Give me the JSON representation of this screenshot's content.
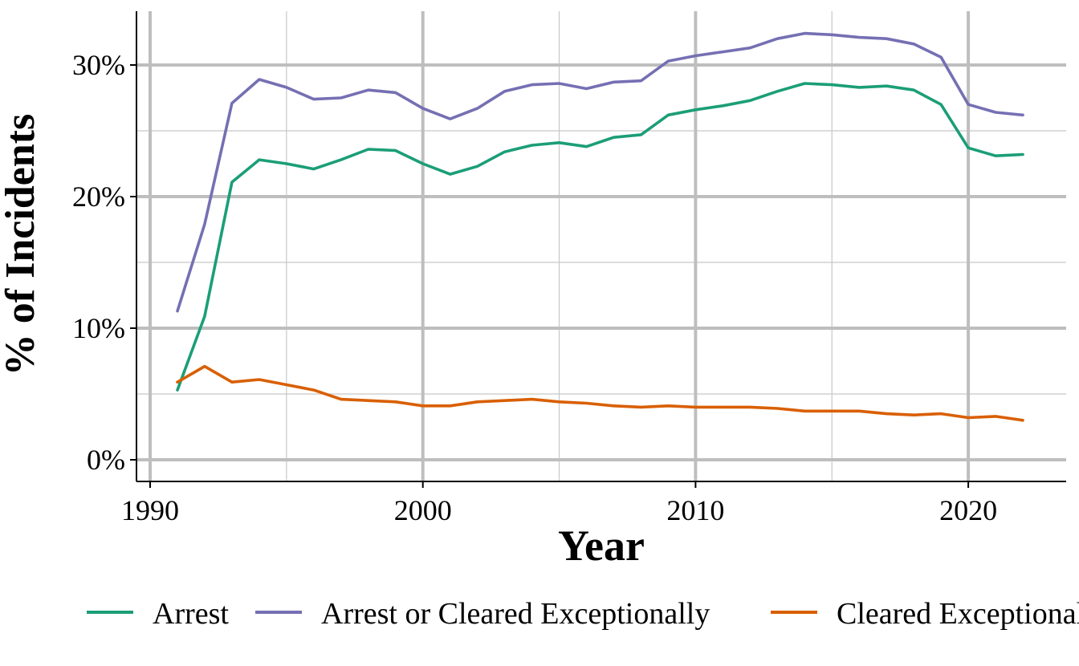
{
  "chart_data": {
    "type": "line",
    "title": "",
    "xlabel": "Year",
    "ylabel": "% of Incidents",
    "xlim": [
      1990,
      2023
    ],
    "ylim": [
      0,
      33
    ],
    "x_ticks": [
      1990,
      2000,
      2010,
      2020
    ],
    "x_tick_labels": [
      "1990",
      "2000",
      "2010",
      "2020"
    ],
    "y_ticks": [
      0,
      10,
      20,
      30
    ],
    "y_tick_labels": [
      "0%",
      "10%",
      "20%",
      "30%"
    ],
    "grid": true,
    "legend_position": "bottom",
    "x": [
      1991,
      1992,
      1993,
      1994,
      1995,
      1996,
      1997,
      1998,
      1999,
      2000,
      2001,
      2002,
      2003,
      2004,
      2005,
      2006,
      2007,
      2008,
      2009,
      2010,
      2011,
      2012,
      2013,
      2014,
      2015,
      2016,
      2017,
      2018,
      2019,
      2020,
      2021,
      2022
    ],
    "series": [
      {
        "name": "Arrest",
        "color": "#1b9e77",
        "values": [
          5.3,
          10.9,
          21.1,
          22.8,
          22.5,
          22.1,
          22.8,
          23.6,
          23.5,
          22.5,
          21.7,
          22.3,
          23.4,
          23.9,
          24.1,
          23.8,
          24.5,
          24.7,
          26.2,
          26.6,
          26.9,
          27.3,
          28.0,
          28.6,
          28.5,
          28.3,
          28.4,
          28.1,
          27.0,
          23.7,
          23.1,
          23.2
        ]
      },
      {
        "name": "Arrest or Cleared Exceptionally",
        "color": "#7570b3",
        "values": [
          11.3,
          17.9,
          27.1,
          28.9,
          28.3,
          27.4,
          27.5,
          28.1,
          27.9,
          26.7,
          25.9,
          26.7,
          28.0,
          28.5,
          28.6,
          28.2,
          28.7,
          28.8,
          30.3,
          30.7,
          31.0,
          31.3,
          32.0,
          32.4,
          32.3,
          32.1,
          32.0,
          31.6,
          30.6,
          27.0,
          26.4,
          26.2
        ]
      },
      {
        "name": "Cleared Exceptionally",
        "color": "#d95f02",
        "values": [
          5.9,
          7.1,
          5.9,
          6.1,
          5.7,
          5.3,
          4.6,
          4.5,
          4.4,
          4.1,
          4.1,
          4.4,
          4.5,
          4.6,
          4.4,
          4.3,
          4.1,
          4.0,
          4.1,
          4.0,
          4.0,
          4.0,
          3.9,
          3.7,
          3.7,
          3.7,
          3.5,
          3.4,
          3.5,
          3.2,
          3.3,
          3.0
        ]
      }
    ]
  }
}
